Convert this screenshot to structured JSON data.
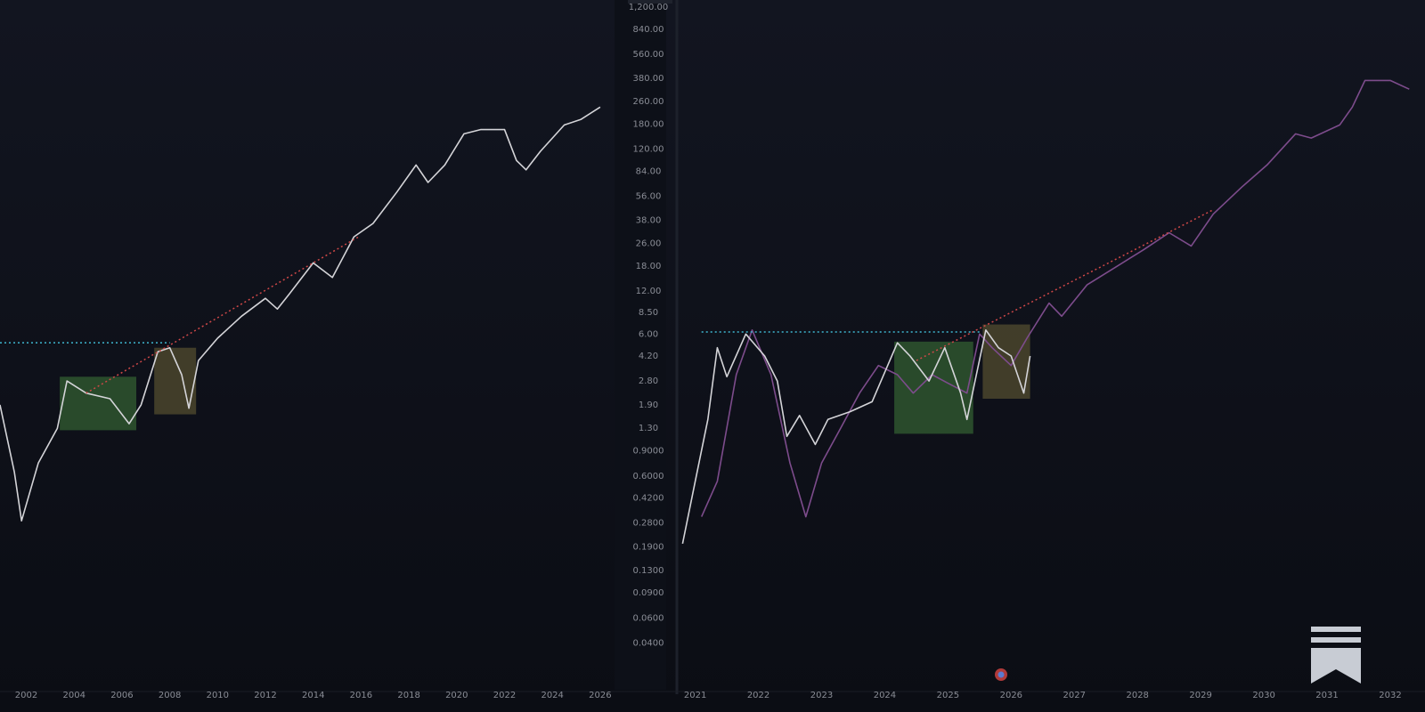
{
  "chart_data": [
    {
      "type": "line",
      "yscale": "log",
      "grid": false,
      "xlim": [
        2000.9,
        2026.6
      ],
      "xticks": [
        2002,
        2004,
        2006,
        2008,
        2010,
        2012,
        2014,
        2016,
        2018,
        2020,
        2022,
        2024,
        2026
      ],
      "ylim": [
        0.025,
        1350
      ],
      "yticks": [
        {
          "value": 1200,
          "label": "1,200.00"
        },
        {
          "value": 840,
          "label": "840.00"
        },
        {
          "value": 560,
          "label": "560.00"
        },
        {
          "value": 380,
          "label": "380.00"
        },
        {
          "value": 260,
          "label": "260.00"
        },
        {
          "value": 180,
          "label": "180.00"
        },
        {
          "value": 120,
          "label": "120.00"
        },
        {
          "value": 84,
          "label": "84.00"
        },
        {
          "value": 56,
          "label": "56.00"
        },
        {
          "value": 38,
          "label": "38.00"
        },
        {
          "value": 26,
          "label": "26.00"
        },
        {
          "value": 18,
          "label": "18.00"
        },
        {
          "value": 12,
          "label": "12.00"
        },
        {
          "value": 8.5,
          "label": "8.50"
        },
        {
          "value": 6,
          "label": "6.00"
        },
        {
          "value": 4.2,
          "label": "4.20"
        },
        {
          "value": 2.8,
          "label": "2.80"
        },
        {
          "value": 1.9,
          "label": "1.90"
        },
        {
          "value": 1.3,
          "label": "1.30"
        },
        {
          "value": 0.9,
          "label": "0.9000"
        },
        {
          "value": 0.6,
          "label": "0.6000"
        },
        {
          "value": 0.42,
          "label": "0.4200"
        },
        {
          "value": 0.28,
          "label": "0.2800"
        },
        {
          "value": 0.19,
          "label": "0.1900"
        },
        {
          "value": 0.13,
          "label": "0.1300"
        },
        {
          "value": 0.09,
          "label": "0.0900"
        },
        {
          "value": 0.06,
          "label": "0.0600"
        },
        {
          "value": 0.04,
          "label": "0.0400"
        }
      ],
      "series": [
        {
          "color": "#d4d4d8",
          "x": [
            2000.9,
            2001.5,
            2001.8,
            2002.5,
            2003.3,
            2003.7,
            2004.5,
            2005.5,
            2006.3,
            2006.8,
            2007.5,
            2008.0,
            2008.5,
            2008.8,
            2009.2,
            2010.0,
            2011.0,
            2012.0,
            2012.5,
            2013.0,
            2014.0,
            2014.8,
            2015.7,
            2016.5,
            2017.5,
            2018.3,
            2018.8,
            2019.5,
            2020.3,
            2021.0,
            2022.0,
            2022.5,
            2022.9,
            2023.5,
            2024.5,
            2025.2,
            2026.0
          ],
          "values": [
            1.9,
            0.64,
            0.29,
            0.74,
            1.3,
            2.8,
            2.3,
            2.1,
            1.4,
            1.9,
            4.5,
            4.8,
            3.1,
            1.8,
            3.9,
            5.6,
            8.0,
            10.7,
            9,
            11.5,
            19,
            15,
            29,
            36,
            60,
            93,
            70,
            93,
            154,
            165,
            165,
            100,
            86,
            116,
            178,
            195,
            238
          ]
        }
      ],
      "boxes": [
        {
          "x": [
            2003.4,
            2006.6
          ],
          "y": [
            1.26,
            3.0
          ],
          "color": "#3f7a3a"
        },
        {
          "x": [
            2007.35,
            2009.1
          ],
          "y": [
            1.63,
            4.8
          ],
          "color": "#6b6236"
        }
      ],
      "lines": [
        {
          "x": [
            2000.9,
            2008.0
          ],
          "y": [
            5.2,
            5.2
          ],
          "color": "#3fb6d0"
        },
        {
          "x": [
            2004.5,
            2015.9
          ],
          "y": [
            2.3,
            29
          ],
          "color": "#d04848"
        }
      ]
    },
    {
      "type": "line",
      "yscale": "log",
      "grid": false,
      "xlim": [
        2020.78,
        2032.55
      ],
      "xticks": [
        2021,
        2022,
        2023,
        2024,
        2025,
        2026,
        2027,
        2028,
        2029,
        2030,
        2031,
        2032
      ],
      "ylim": [
        0.025,
        1350
      ],
      "series": [
        {
          "color": "#7d4c8c",
          "x": [
            2021.1,
            2021.35,
            2021.65,
            2021.9,
            2022.2,
            2022.5,
            2022.75,
            2023.0,
            2023.3,
            2023.6,
            2023.9,
            2024.2,
            2024.45,
            2024.75,
            2025.0,
            2025.3,
            2025.5,
            2025.7,
            2026.0,
            2026.25,
            2026.6,
            2026.8,
            2027.2,
            2027.65,
            2028.1,
            2028.5,
            2028.85,
            2029.2,
            2029.65,
            2030.05,
            2030.5,
            2030.75,
            2031.2,
            2031.4,
            2031.6,
            2032.0,
            2032.3
          ],
          "values": [
            0.31,
            0.55,
            3.1,
            6.4,
            3.1,
            0.74,
            0.31,
            0.74,
            1.3,
            2.3,
            3.6,
            3.1,
            2.3,
            3.1,
            2.7,
            2.3,
            6.0,
            4.8,
            3.6,
            5.6,
            9.9,
            8.0,
            13.3,
            17.7,
            23.6,
            31,
            25,
            42,
            65,
            93,
            154,
            144,
            178,
            238,
            366,
            366,
            318
          ]
        },
        {
          "color": "#d4d4d8",
          "x": [
            2020.8,
            2021.0,
            2021.2,
            2021.35,
            2021.5,
            2021.8,
            2022.1,
            2022.3,
            2022.45,
            2022.65,
            2022.9,
            2023.1,
            2023.45,
            2023.8,
            2024.2,
            2024.4,
            2024.7,
            2024.95,
            2025.2,
            2025.3,
            2025.45,
            2025.6,
            2025.8,
            2026.0,
            2026.2,
            2026.3
          ],
          "values": [
            0.2,
            0.55,
            1.5,
            4.8,
            3.0,
            6.0,
            4.2,
            2.8,
            1.14,
            1.6,
            1.0,
            1.5,
            1.7,
            2.0,
            5.2,
            4.2,
            2.8,
            4.8,
            2.3,
            1.5,
            3.1,
            6.4,
            4.8,
            4.2,
            2.3,
            4.2
          ]
        }
      ],
      "boxes": [
        {
          "x": [
            2024.15,
            2025.4
          ],
          "y": [
            1.19,
            5.3
          ],
          "color": "#3f7a3a"
        },
        {
          "x": [
            2025.55,
            2026.3
          ],
          "y": [
            2.1,
            7.0
          ],
          "color": "#6b6236"
        }
      ],
      "lines": [
        {
          "x": [
            2021.1,
            2025.5
          ],
          "y": [
            6.2,
            6.2
          ],
          "color": "#3fb6d0"
        },
        {
          "x": [
            2024.5,
            2029.2
          ],
          "y": [
            3.9,
            45
          ],
          "color": "#d04848"
        }
      ]
    }
  ]
}
